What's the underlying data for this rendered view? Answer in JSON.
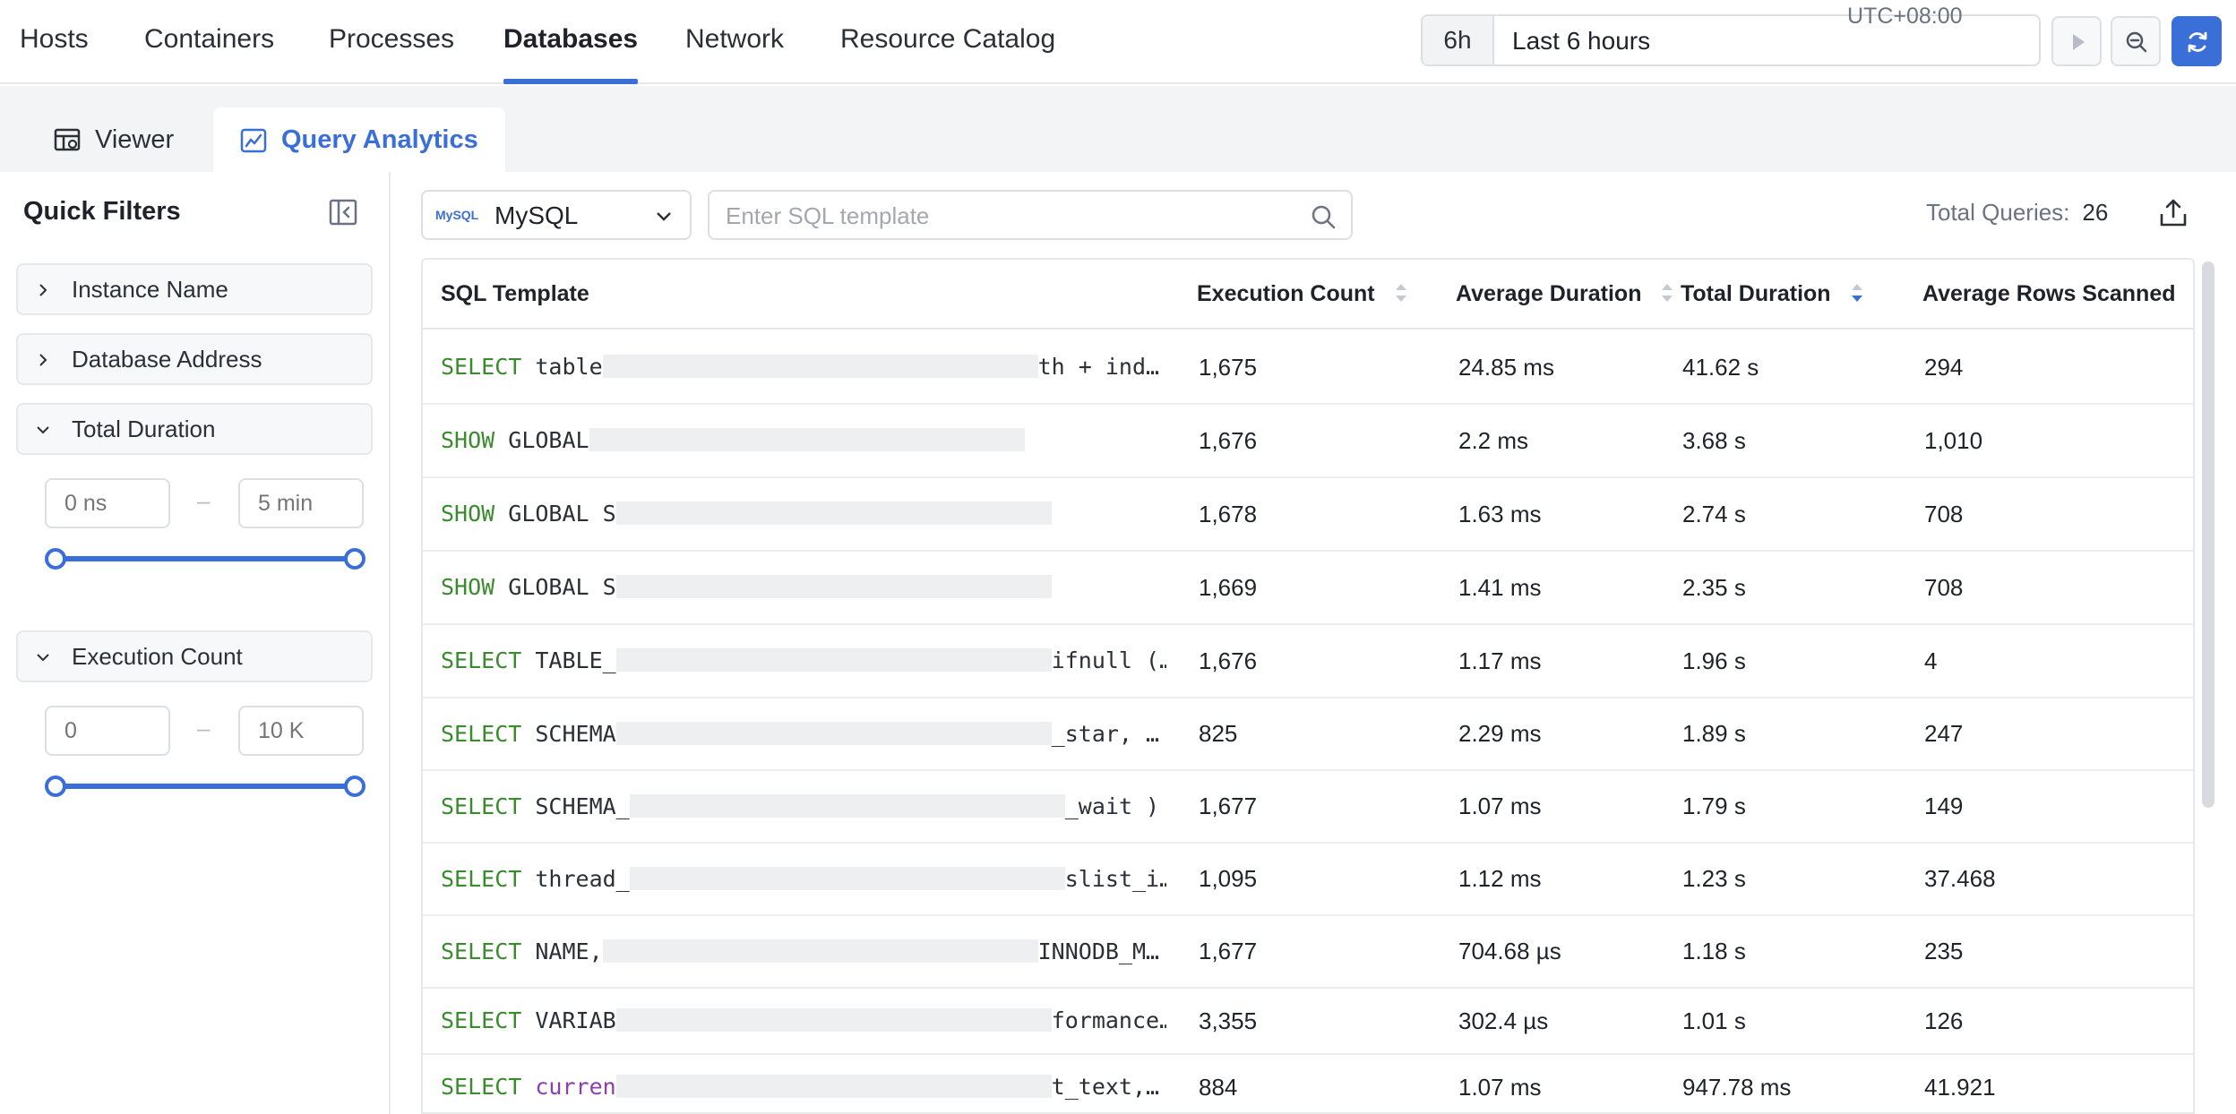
{
  "nav": {
    "tabs": [
      {
        "label": "Hosts",
        "active": false
      },
      {
        "label": "Containers",
        "active": false
      },
      {
        "label": "Processes",
        "active": false
      },
      {
        "label": "Databases",
        "active": true
      },
      {
        "label": "Network",
        "active": false
      },
      {
        "label": "Resource Catalog",
        "active": false
      }
    ],
    "accent": "#3b6fd8"
  },
  "time": {
    "chip": "6h",
    "label": "Last 6 hours",
    "timezone": "UTC+08:00",
    "buttons": [
      "play-icon",
      "zoom-out-icon",
      "refresh-icon"
    ]
  },
  "subtabs": [
    {
      "label": "Viewer",
      "icon": "table-view-icon",
      "active": false
    },
    {
      "label": "Query Analytics",
      "icon": "analytics-icon",
      "active": true
    }
  ],
  "sidebar": {
    "title": "Quick Filters",
    "filters": [
      {
        "label": "Instance Name",
        "expanded": false
      },
      {
        "label": "Database Address",
        "expanded": false
      },
      {
        "label": "Total Duration",
        "expanded": true,
        "min_placeholder": "0 ns",
        "max_placeholder": "5 min"
      },
      {
        "label": "Execution Count",
        "expanded": true,
        "min_placeholder": "0",
        "max_placeholder": "10 K"
      }
    ],
    "range_separator": "–"
  },
  "toolbar": {
    "db_logo": "MySQL",
    "db_type": "MySQL",
    "search_placeholder": "Enter SQL template",
    "total_label": "Total Queries:",
    "total_value": "26"
  },
  "table": {
    "columns": [
      "SQL Template",
      "Execution Count",
      "Average Duration",
      "Total Duration",
      "Average Rows Scanned"
    ],
    "rows": [
      {
        "kw": "SELECT",
        "kw_color": "green",
        "pre": " table",
        "post": "th + ind…",
        "count": "1,675",
        "avg": "24.85 ms",
        "total": "41.62 s",
        "rows": "294"
      },
      {
        "kw": "SHOW",
        "kw_color": "green",
        "pre": " GLOBAL",
        "post": "",
        "count": "1,676",
        "avg": "2.2 ms",
        "total": "3.68 s",
        "rows": "1,010"
      },
      {
        "kw": "SHOW",
        "kw_color": "green",
        "pre": " GLOBAL S",
        "post": "",
        "count": "1,678",
        "avg": "1.63 ms",
        "total": "2.74 s",
        "rows": "708"
      },
      {
        "kw": "SHOW",
        "kw_color": "green",
        "pre": " GLOBAL S",
        "post": "",
        "count": "1,669",
        "avg": "1.41 ms",
        "total": "2.35 s",
        "rows": "708"
      },
      {
        "kw": "SELECT",
        "kw_color": "green",
        "pre": " TABLE_",
        "post": "ifnull (…",
        "count": "1,676",
        "avg": "1.17 ms",
        "total": "1.96 s",
        "rows": "4"
      },
      {
        "kw": "SELECT",
        "kw_color": "green",
        "pre": " SCHEMA",
        "post": "_star, …",
        "count": "825",
        "avg": "2.29 ms",
        "total": "1.89 s",
        "rows": "247"
      },
      {
        "kw": "SELECT",
        "kw_color": "green",
        "pre": " SCHEMA_",
        "post": "_wait ) …",
        "count": "1,677",
        "avg": "1.07 ms",
        "total": "1.79 s",
        "rows": "149"
      },
      {
        "kw": "SELECT",
        "kw_color": "green",
        "pre": " thread_",
        "post": "slist_i…",
        "count": "1,095",
        "avg": "1.12 ms",
        "total": "1.23 s",
        "rows": "37.468"
      },
      {
        "kw": "SELECT",
        "kw_color": "green",
        "pre": " NAME,",
        "post": "INNODB_M…",
        "count": "1,677",
        "avg": "704.68 µs",
        "total": "1.18 s",
        "rows": "235"
      },
      {
        "kw": "SELECT",
        "kw_color": "green",
        "pre": " VARIAB",
        "post": "formance…",
        "count": "3,355",
        "avg": "302.4 µs",
        "total": "1.01 s",
        "rows": "126"
      },
      {
        "kw": "SELECT",
        "kw_color": "green",
        "pre": " curren",
        "post": "t_text,…",
        "count": "884",
        "avg": "1.07 ms",
        "total": "947.78 ms",
        "rows": "41.921",
        "pre_color": "purple"
      }
    ]
  }
}
